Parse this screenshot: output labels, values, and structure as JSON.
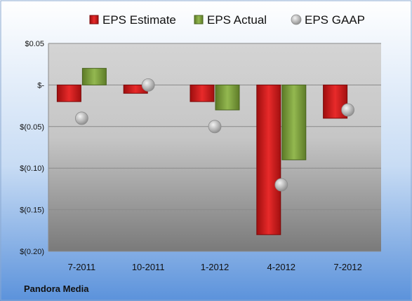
{
  "chart_data": {
    "type": "bar",
    "categories": [
      "7-2011",
      "10-2011",
      "1-2012",
      "4-2012",
      "7-2012"
    ],
    "series": [
      {
        "name": "EPS Estimate",
        "kind": "bar",
        "values": [
          -0.02,
          -0.01,
          -0.02,
          -0.18,
          -0.04
        ]
      },
      {
        "name": "EPS Actual",
        "kind": "bar",
        "values": [
          0.02,
          null,
          -0.03,
          -0.09,
          null
        ]
      },
      {
        "name": "EPS GAAP",
        "kind": "scatter",
        "values": [
          -0.04,
          0.0,
          -0.05,
          -0.12,
          -0.03
        ]
      }
    ],
    "yticks": [
      0.05,
      0.0,
      -0.05,
      -0.1,
      -0.15,
      -0.2
    ],
    "ytick_labels": [
      "$0.05",
      "$-",
      "$(0.05)",
      "$(0.10)",
      "$(0.15)",
      "$(0.20)"
    ],
    "ylim": [
      -0.2,
      0.05
    ],
    "grid": true,
    "legend_position": "top",
    "source_label": "Pandora Media",
    "colors": {
      "estimate": "#d42020",
      "actual": "#7ea03a",
      "gaap": "#b8b8b8"
    }
  }
}
